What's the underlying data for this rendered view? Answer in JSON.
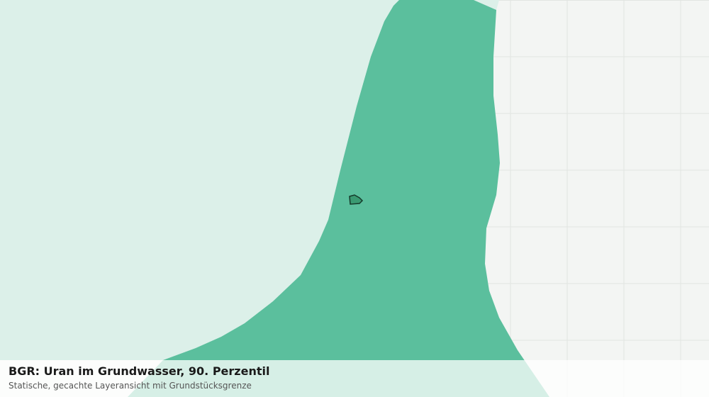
{
  "title": "BGR: Uran im Grundwasser, 90. Perzentil",
  "subtitle": "Statische, gecachte Layeransicht mit Grundstücksgrenze"
}
